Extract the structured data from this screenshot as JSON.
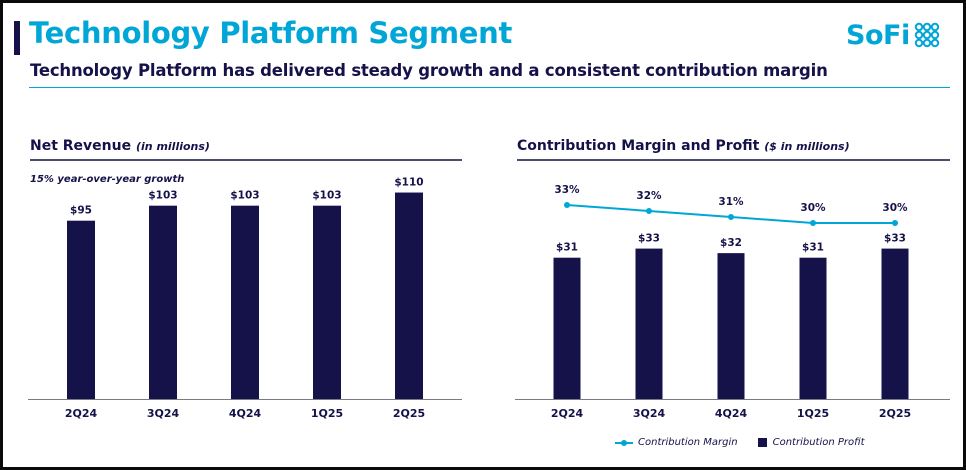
{
  "header": {
    "title": "Technology Platform Segment",
    "subtitle": "Technology Platform has delivered steady growth and a consistent contribution margin",
    "logo_text": "SoFi",
    "logo_mark_icon": "sofi-dots-icon"
  },
  "colors": {
    "title": "#00a6d6",
    "bars": "#15124a",
    "line": "#00a6d6",
    "text": "#15124a"
  },
  "revenue_panel": {
    "title": "Net Revenue",
    "units": "(in millions)",
    "note": "15% year-over-year growth"
  },
  "margin_panel": {
    "title": "Contribution Margin and Profit",
    "units": "($ in millions)",
    "legend": {
      "margin": "Contribution Margin",
      "profit": "Contribution Profit"
    }
  },
  "chart_data": [
    {
      "type": "bar",
      "title": "Net Revenue (in millions)",
      "annotation": "15% year-over-year growth",
      "categories": [
        "2Q24",
        "3Q24",
        "4Q24",
        "1Q25",
        "2Q25"
      ],
      "values": [
        95,
        103,
        103,
        103,
        110
      ],
      "data_labels": [
        "$95",
        "$103",
        "$103",
        "$103",
        "$110"
      ],
      "ylim": [
        0,
        130
      ],
      "grid": false,
      "xlabel": "",
      "ylabel": ""
    },
    {
      "type": "bar",
      "title": "Contribution Margin and Profit ($ in millions)",
      "categories": [
        "2Q24",
        "3Q24",
        "4Q24",
        "1Q25",
        "2Q25"
      ],
      "series": [
        {
          "name": "Contribution Profit",
          "type": "bar",
          "values": [
            31,
            33,
            32,
            31,
            33
          ],
          "data_labels": [
            "$31",
            "$33",
            "$32",
            "$31",
            "$33"
          ]
        },
        {
          "name": "Contribution Margin",
          "type": "line",
          "values": [
            33,
            32,
            31,
            30,
            30
          ],
          "unit": "%",
          "data_labels": [
            "33%",
            "32%",
            "31%",
            "30%",
            "30%"
          ]
        }
      ],
      "ylim": [
        0,
        43
      ],
      "legend": "bottom",
      "grid": false,
      "xlabel": "",
      "ylabel": ""
    }
  ]
}
